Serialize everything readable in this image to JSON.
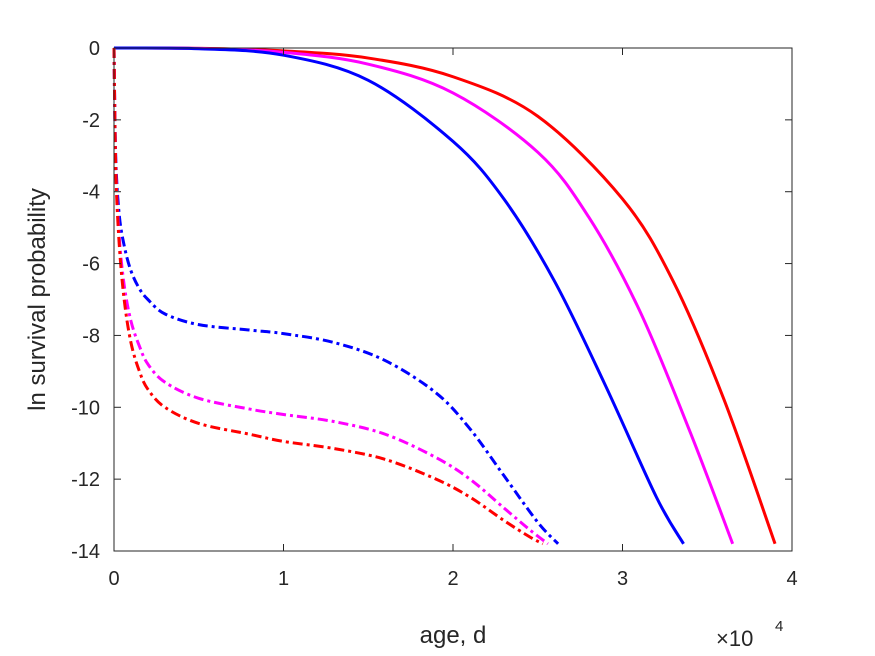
{
  "chart_data": {
    "type": "line",
    "title": "",
    "xlabel": "age, d",
    "ylabel": "ln survival probability",
    "x_exponent_base": "×10",
    "x_exponent_power": "4",
    "x_scale": 10000,
    "xlim": [
      0,
      4
    ],
    "ylim": [
      -14,
      0
    ],
    "x_ticks": [
      0,
      1,
      2,
      3,
      4
    ],
    "x_tick_labels": [
      "0",
      "1",
      "2",
      "3",
      "4"
    ],
    "y_ticks": [
      0,
      -2,
      -4,
      -6,
      -8,
      -10,
      -12,
      -14
    ],
    "y_tick_labels": [
      "0",
      "-2",
      "-4",
      "-6",
      "-8",
      "-10",
      "-12",
      "-14"
    ],
    "grid": false,
    "legend": "none",
    "series": [
      {
        "color": "#ff0000",
        "style": "solid",
        "x": [
          0,
          0.5,
          1.0,
          1.5,
          2.0,
          2.5,
          3.0,
          3.3,
          3.6,
          3.9
        ],
        "y": [
          0,
          -0.01,
          -0.08,
          -0.28,
          -0.8,
          -1.9,
          -4.2,
          -6.5,
          -9.8,
          -13.8
        ]
      },
      {
        "color": "#ff00ff",
        "style": "solid",
        "x": [
          0,
          0.5,
          1.0,
          1.5,
          2.0,
          2.5,
          2.8,
          3.1,
          3.4,
          3.65
        ],
        "y": [
          0,
          -0.01,
          -0.12,
          -0.45,
          -1.25,
          -2.9,
          -4.7,
          -7.3,
          -10.7,
          -13.8
        ]
      },
      {
        "color": "#0000ff",
        "style": "solid",
        "x": [
          0,
          0.5,
          1.0,
          1.5,
          2.0,
          2.3,
          2.6,
          2.9,
          3.2,
          3.36
        ],
        "y": [
          0,
          -0.02,
          -0.2,
          -0.9,
          -2.6,
          -4.2,
          -6.5,
          -9.4,
          -12.5,
          -13.8
        ]
      },
      {
        "color": "#0000ff",
        "style": "dashdot",
        "x": [
          0,
          0.01,
          0.03,
          0.06,
          0.1,
          0.15,
          0.2,
          0.3,
          0.5,
          0.8,
          1.0,
          1.3,
          1.6,
          1.9,
          2.1,
          2.3,
          2.5,
          2.62
        ],
        "y": [
          0,
          -3.0,
          -4.6,
          -5.5,
          -6.2,
          -6.7,
          -7.0,
          -7.4,
          -7.7,
          -7.85,
          -7.95,
          -8.2,
          -8.7,
          -9.6,
          -10.6,
          -11.9,
          -13.2,
          -13.8
        ]
      },
      {
        "color": "#ff00ff",
        "style": "dashdot",
        "x": [
          0,
          0.01,
          0.03,
          0.06,
          0.1,
          0.15,
          0.2,
          0.3,
          0.5,
          0.8,
          1.0,
          1.3,
          1.6,
          1.9,
          2.1,
          2.3,
          2.45,
          2.56
        ],
        "y": [
          0,
          -3.2,
          -5.2,
          -6.6,
          -7.6,
          -8.3,
          -8.8,
          -9.3,
          -9.75,
          -10.05,
          -10.2,
          -10.4,
          -10.75,
          -11.4,
          -12.0,
          -12.8,
          -13.4,
          -13.8
        ]
      },
      {
        "color": "#ff0000",
        "style": "dashdot",
        "x": [
          0,
          0.01,
          0.03,
          0.06,
          0.1,
          0.15,
          0.2,
          0.3,
          0.5,
          0.8,
          1.0,
          1.3,
          1.6,
          1.9,
          2.1,
          2.3,
          2.45,
          2.53
        ],
        "y": [
          0,
          -3.3,
          -5.4,
          -7.0,
          -8.2,
          -9.0,
          -9.5,
          -10.0,
          -10.45,
          -10.75,
          -10.95,
          -11.15,
          -11.45,
          -12.0,
          -12.5,
          -13.15,
          -13.6,
          -13.8
        ]
      }
    ]
  }
}
